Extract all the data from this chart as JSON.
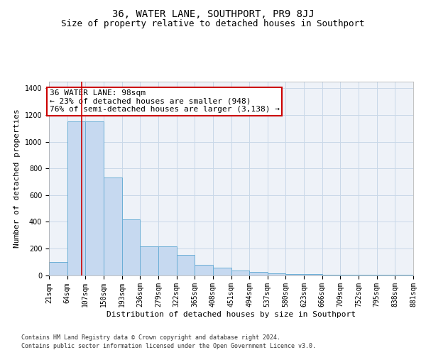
{
  "title": "36, WATER LANE, SOUTHPORT, PR9 8JJ",
  "subtitle": "Size of property relative to detached houses in Southport",
  "xlabel": "Distribution of detached houses by size in Southport",
  "ylabel": "Number of detached properties",
  "bar_values": [
    100,
    1150,
    1150,
    730,
    420,
    215,
    215,
    150,
    75,
    55,
    35,
    25,
    15,
    10,
    10,
    5,
    5,
    3,
    3,
    2
  ],
  "bin_edges": [
    21,
    64,
    107,
    150,
    193,
    236,
    279,
    322,
    365,
    408,
    451,
    494,
    537,
    580,
    623,
    666,
    709,
    752,
    795,
    838,
    881
  ],
  "bar_color": "#c6d9f0",
  "bar_edge_color": "#6baed6",
  "grid_color": "#c8d8e8",
  "background_color": "#eef2f8",
  "annotation_text": "36 WATER LANE: 98sqm\n← 23% of detached houses are smaller (948)\n76% of semi-detached houses are larger (3,138) →",
  "annotation_box_facecolor": "#ffffff",
  "annotation_border_color": "#cc0000",
  "red_line_x": 98,
  "red_line_color": "#cc0000",
  "ylim": [
    0,
    1450
  ],
  "yticks": [
    0,
    200,
    400,
    600,
    800,
    1000,
    1200,
    1400
  ],
  "footer_line1": "Contains HM Land Registry data © Crown copyright and database right 2024.",
  "footer_line2": "Contains public sector information licensed under the Open Government Licence v3.0.",
  "title_fontsize": 10,
  "subtitle_fontsize": 9,
  "xlabel_fontsize": 8,
  "ylabel_fontsize": 8,
  "tick_fontsize": 7,
  "annotation_fontsize": 8,
  "footer_fontsize": 6
}
